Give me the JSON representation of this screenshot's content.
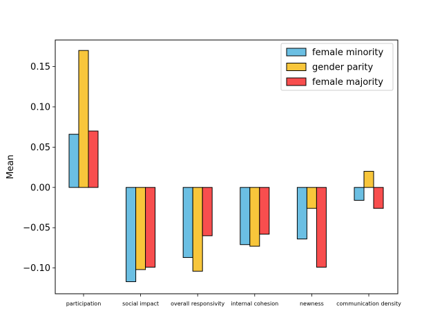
{
  "chart_data": {
    "type": "bar",
    "title": "",
    "xlabel": "",
    "ylabel": "Mean",
    "ylim": [
      -0.132,
      0.183
    ],
    "yticks": [
      -0.1,
      -0.05,
      0.0,
      0.05,
      0.1,
      0.15
    ],
    "ytick_labels": [
      "−0.10",
      "−0.05",
      "0.00",
      "0.05",
      "0.10",
      "0.15"
    ],
    "grid": false,
    "legend_position": "top-right",
    "categories": [
      "participation",
      "social impact",
      "overall responsivity",
      "internal cohesion",
      "newness",
      "communication density"
    ],
    "series": [
      {
        "name": "female minority",
        "color": "#6bbfe3",
        "values": [
          0.066,
          -0.117,
          -0.087,
          -0.071,
          -0.064,
          -0.016
        ]
      },
      {
        "name": "gender parity",
        "color": "#f8c63b",
        "values": [
          0.17,
          -0.102,
          -0.104,
          -0.073,
          -0.026,
          0.02
        ]
      },
      {
        "name": "female majority",
        "color": "#f84e4e",
        "values": [
          0.07,
          -0.099,
          -0.06,
          -0.058,
          -0.099,
          -0.026
        ]
      }
    ]
  }
}
